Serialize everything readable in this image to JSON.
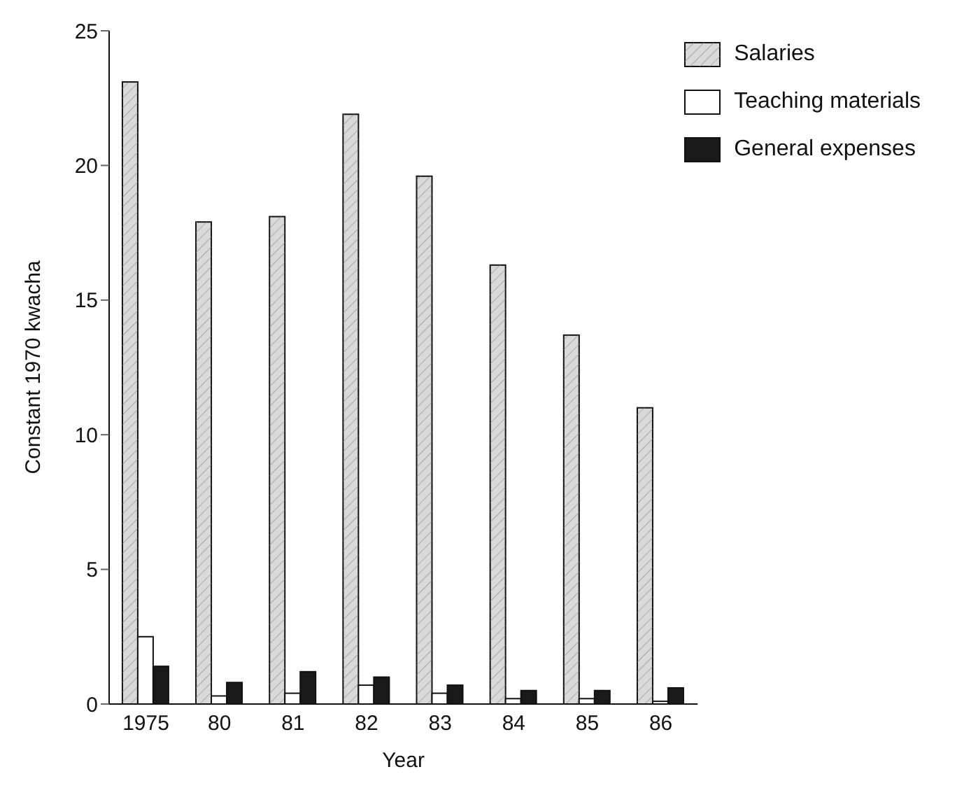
{
  "chart_data": {
    "type": "bar",
    "xlabel": "Year",
    "ylabel": "Constant 1970 kwacha",
    "categories": [
      "1975",
      "80",
      "81",
      "82",
      "83",
      "84",
      "85",
      "86"
    ],
    "series": [
      {
        "name": "Salaries",
        "color": "#d9d9d9",
        "values": [
          23.1,
          17.9,
          18.1,
          21.9,
          19.6,
          16.3,
          13.7,
          11.0
        ]
      },
      {
        "name": "Teaching materials",
        "color": "#ffffff",
        "values": [
          2.5,
          0.3,
          0.4,
          0.7,
          0.4,
          0.2,
          0.2,
          0.1
        ]
      },
      {
        "name": "General expenses",
        "color": "#1a1a1a",
        "values": [
          1.4,
          0.8,
          1.2,
          1.0,
          0.7,
          0.5,
          0.5,
          0.6
        ]
      }
    ],
    "ylim": [
      0,
      25
    ],
    "yticks": [
      0,
      5,
      10,
      15,
      20,
      25
    ],
    "grid": false,
    "legend": "top right"
  }
}
